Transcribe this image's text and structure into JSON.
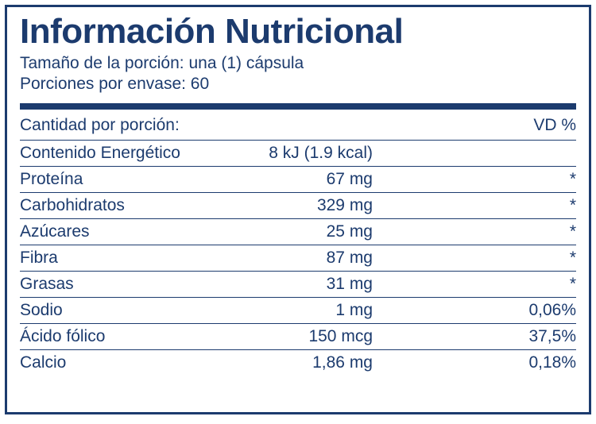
{
  "colors": {
    "primary": "#1c3b6e",
    "border": "#1c3b6e",
    "background": "#ffffff"
  },
  "title": "Información Nutricional",
  "serving_size_label": "Tamaño de la porción: una (1) cápsula",
  "servings_per_container_label": "Porciones por envase: 60",
  "header": {
    "left": "Cantidad por porción:",
    "right": "VD %"
  },
  "rows": [
    {
      "name": "Contenido Energético",
      "amount": "8 kJ (1.9 kcal)",
      "dv": ""
    },
    {
      "name": "Proteína",
      "amount": "67 mg",
      "dv": "*"
    },
    {
      "name": "Carbohidratos",
      "amount": "329 mg",
      "dv": "*"
    },
    {
      "name": "Azúcares",
      "amount": "25 mg",
      "dv": "*"
    },
    {
      "name": "Fibra",
      "amount": "87 mg",
      "dv": "*"
    },
    {
      "name": "Grasas",
      "amount": "31 mg",
      "dv": "*"
    },
    {
      "name": "Sodio",
      "amount": "1 mg",
      "dv": "0,06%"
    },
    {
      "name": "Ácido fólico",
      "amount": "150 mcg",
      "dv": "37,5%"
    },
    {
      "name": "Calcio",
      "amount": "1,86 mg",
      "dv": "0,18%"
    }
  ]
}
